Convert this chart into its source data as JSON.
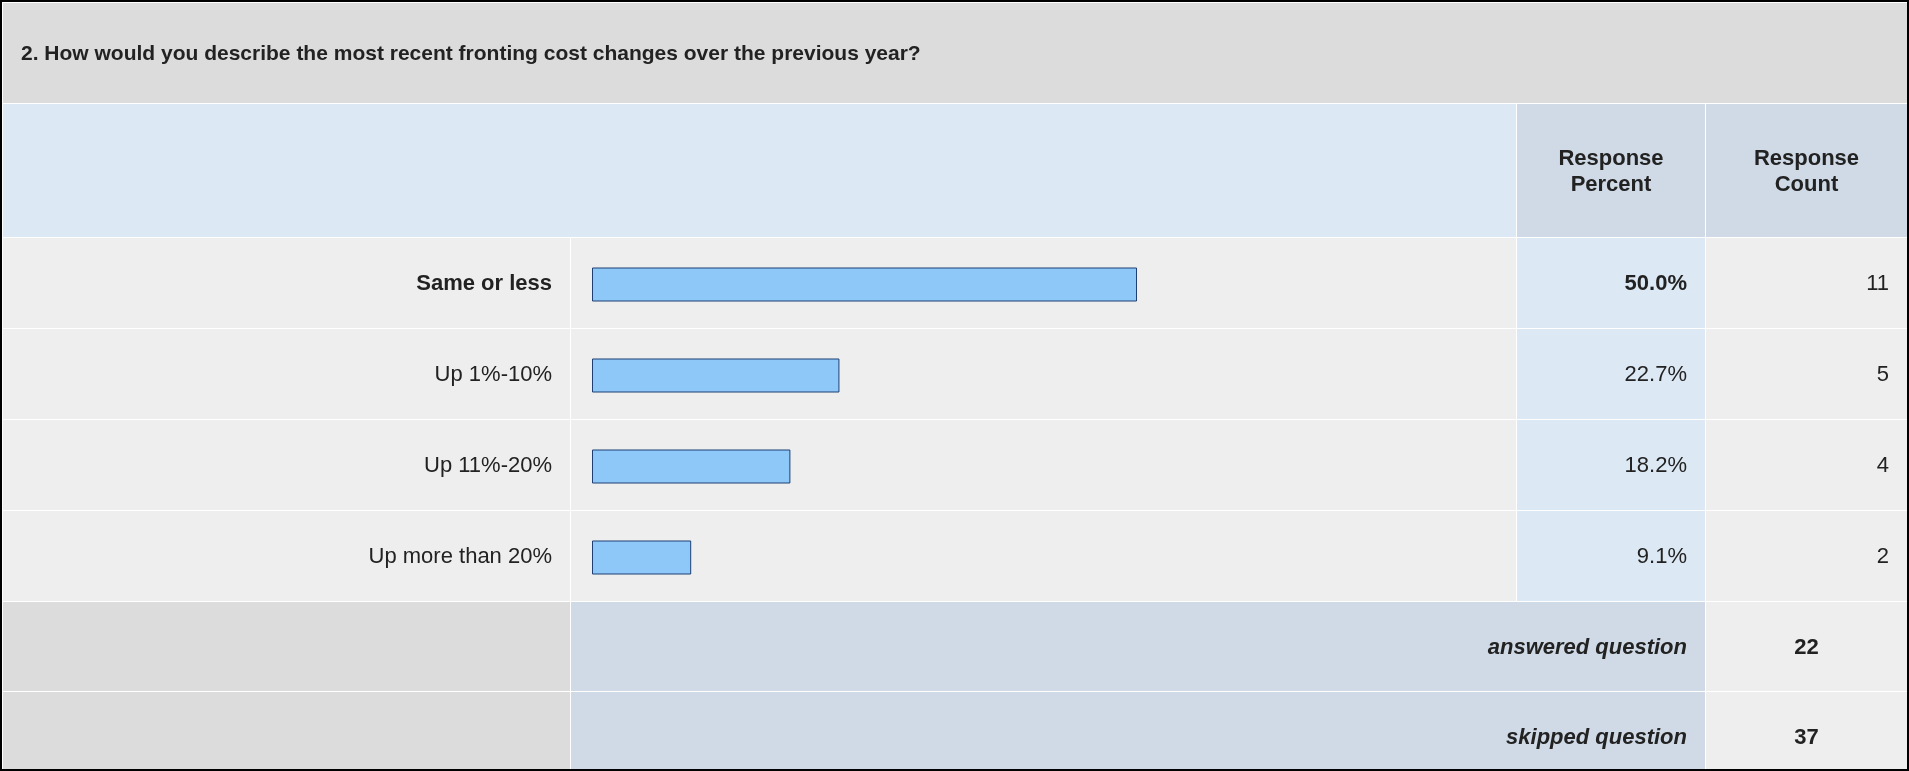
{
  "chart_data": {
    "type": "bar",
    "orientation": "horizontal",
    "title": "2. How would you describe the most recent fronting cost changes over the previous year?",
    "categories": [
      "Same or less",
      "Up 1%-10%",
      "Up 11%-20%",
      "Up more than 20%"
    ],
    "values": [
      50.0,
      22.7,
      18.2,
      9.1
    ],
    "value_labels": [
      "50.0%",
      "22.7%",
      "18.2%",
      "9.1%"
    ],
    "color": "#8ec8f8",
    "annotations": [
      "Response Percent",
      "Response Count",
      "11",
      "5",
      "4",
      "2",
      "answered question",
      "22",
      "skipped question",
      "37"
    ]
  }
}
